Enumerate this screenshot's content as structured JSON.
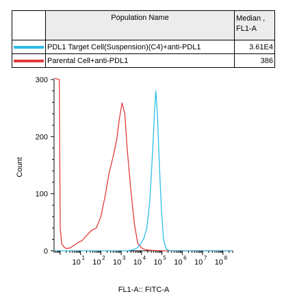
{
  "legend_table": {
    "header": {
      "name": "Population Name",
      "value_line1": "Median ,",
      "value_line2": "FL1-A"
    },
    "rows": [
      {
        "color": "#2bbde8",
        "name": "PDL1 Target Cell(Suspension)(C4)+anti-PDL1",
        "value": "3.61E4"
      },
      {
        "color": "#e03a3a",
        "name": "Parental Cell+anti-PDL1",
        "value": "386"
      }
    ]
  },
  "chart_data": {
    "type": "line",
    "title": "",
    "xlabel": "FL1-A:: FITC-A",
    "ylabel": "Count",
    "xscale": "log",
    "xlim": [
      0.5,
      300000000.0
    ],
    "ylim": [
      0,
      300
    ],
    "yticks": [
      0,
      100,
      200,
      300
    ],
    "xticks": [
      {
        "base": "10",
        "exp": "1"
      },
      {
        "base": "10",
        "exp": "2"
      },
      {
        "base": "10",
        "exp": "3"
      },
      {
        "base": "10",
        "exp": "4"
      },
      {
        "base": "10",
        "exp": "5"
      },
      {
        "base": "10",
        "exp": "6"
      },
      {
        "base": "10",
        "exp": "7"
      },
      {
        "base": "10",
        "exp": "8"
      }
    ],
    "grid": false,
    "series": [
      {
        "color": "#e03a3a",
        "x": [
          0.5,
          0.9,
          1.0,
          1.2,
          1.5,
          2,
          3,
          5,
          8,
          12,
          20,
          35,
          60,
          100,
          160,
          250,
          400,
          600,
          800,
          1100,
          1500,
          2000,
          3000,
          4500,
          6500,
          10000,
          15000,
          25000,
          100000,
          300000000
        ],
        "y": [
          305,
          300,
          40,
          12,
          7,
          4,
          5,
          10,
          15,
          18,
          27,
          36,
          40,
          60,
          95,
          135,
          165,
          195,
          230,
          259,
          240,
          175,
          105,
          45,
          13,
          5,
          2,
          1,
          0,
          0
        ]
      },
      {
        "color": "#2bbde8",
        "x": [
          0.5,
          2000,
          4000,
          6000,
          9000,
          13000,
          18000,
          25000,
          32000,
          38000,
          44000,
          50000,
          60000,
          75000,
          95000,
          120000,
          160000,
          250000,
          300000000
        ],
        "y": [
          0,
          0,
          2,
          5,
          12,
          22,
          40,
          85,
          150,
          200,
          250,
          280,
          240,
          150,
          70,
          20,
          3,
          0,
          0
        ]
      }
    ]
  }
}
